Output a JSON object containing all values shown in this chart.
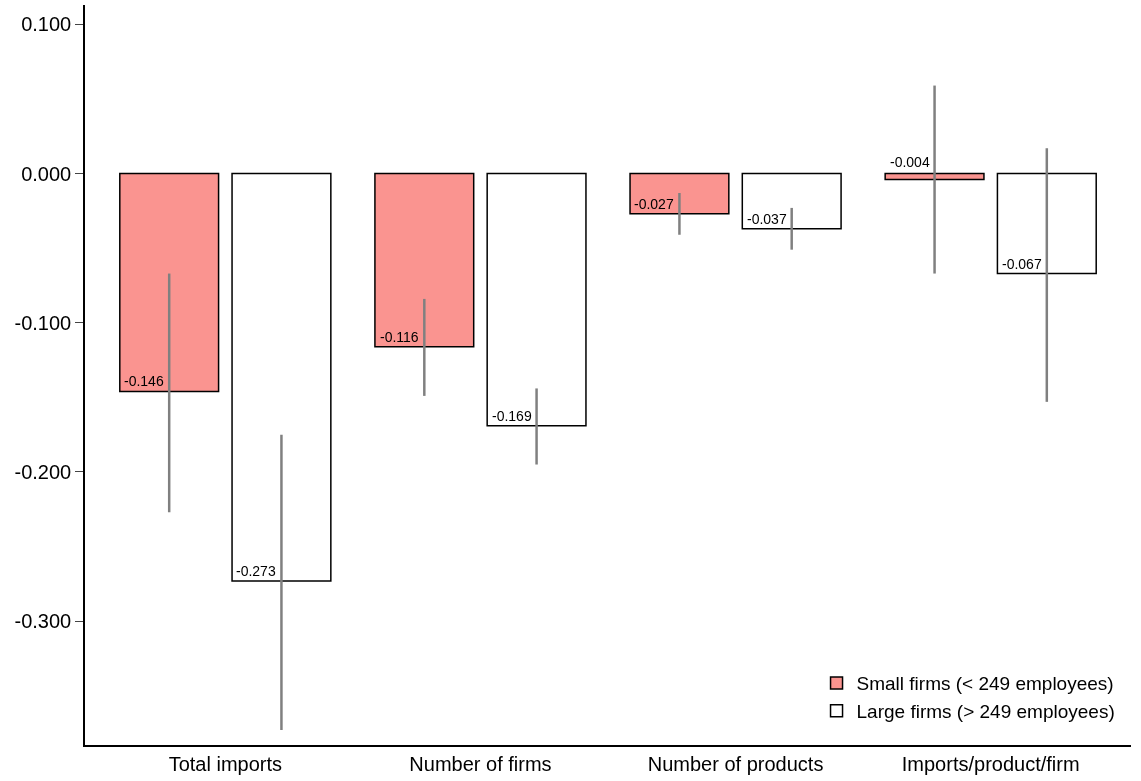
{
  "chart_data": {
    "type": "bar",
    "categories": [
      "Total imports",
      "Number of firms",
      "Number of products",
      "Imports/product/firm"
    ],
    "series": [
      {
        "name": "Small firms (< 249 employees)",
        "color": "#fa9490",
        "values": [
          -0.146,
          -0.116,
          -0.027,
          -0.004
        ],
        "errors": [
          [
            -0.227,
            -0.067
          ],
          [
            -0.149,
            -0.084
          ],
          [
            -0.041,
            -0.013
          ],
          [
            -0.067,
            0.059
          ]
        ]
      },
      {
        "name": "Large firms (> 249 employees)",
        "color": "#ffffff",
        "values": [
          -0.273,
          -0.169,
          -0.037,
          -0.067
        ],
        "errors": [
          [
            -0.373,
            -0.175
          ],
          [
            -0.195,
            -0.144
          ],
          [
            -0.051,
            -0.023
          ],
          [
            -0.153,
            0.017
          ]
        ]
      }
    ],
    "ylim": [
      -0.383,
      0.113
    ],
    "yticks": [
      {
        "value": 0.1,
        "label": "0.100"
      },
      {
        "value": 0,
        "label": "0.000"
      },
      {
        "value": -0.1,
        "label": "-0.100"
      },
      {
        "value": -0.2,
        "label": "-0.200"
      },
      {
        "value": -0.3,
        "label": "-0.300"
      }
    ],
    "data_labels": true,
    "grid": false,
    "legend": "bottom right"
  }
}
